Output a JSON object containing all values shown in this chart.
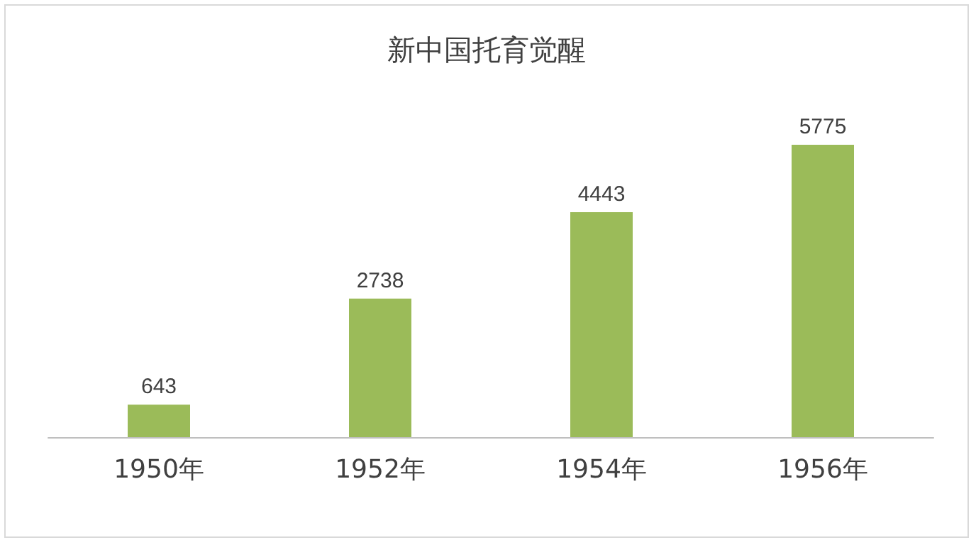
{
  "chart_data": {
    "type": "bar",
    "title": "新中国托育觉醒",
    "categories": [
      "1950年",
      "1952年",
      "1954年",
      "1956年"
    ],
    "values": [
      643,
      2738,
      4443,
      5775
    ],
    "color": "#9bbb59",
    "data_labels": true
  }
}
